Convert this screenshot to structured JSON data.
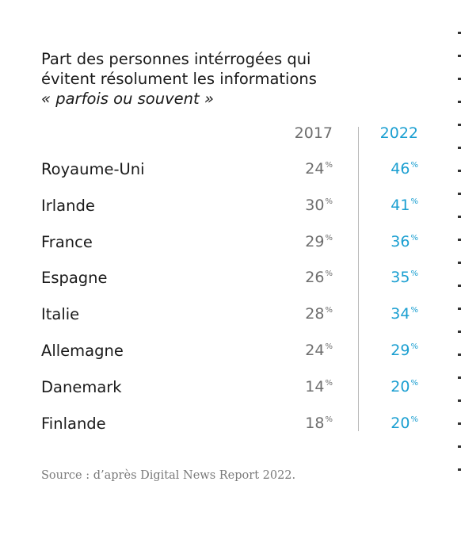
{
  "chart_data": {
    "type": "table",
    "title_lines": [
      "Part des personnes intérrogées qui",
      "évitent résolument les informations",
      "« parfois ou souvent »"
    ],
    "columns": [
      "2017",
      "2022"
    ],
    "unit": "%",
    "rows": [
      {
        "country": "Royaume-Uni",
        "v2017": 24,
        "v2022": 46
      },
      {
        "country": "Irlande",
        "v2017": 30,
        "v2022": 41
      },
      {
        "country": "France",
        "v2017": 29,
        "v2022": 36
      },
      {
        "country": "Espagne",
        "v2017": 26,
        "v2022": 35
      },
      {
        "country": "Italie",
        "v2017": 28,
        "v2022": 34
      },
      {
        "country": "Allemagne",
        "v2017": 24,
        "v2022": 29
      },
      {
        "country": "Danemark",
        "v2017": 14,
        "v2022": 20
      },
      {
        "country": "Finlande",
        "v2017": 18,
        "v2022": 20
      }
    ],
    "colors": {
      "2017": "#6e6e6e",
      "2022": "#1b9fd1",
      "divider": "#b9b9b9"
    }
  },
  "source": "Source : d’après Digital News Report 2022."
}
